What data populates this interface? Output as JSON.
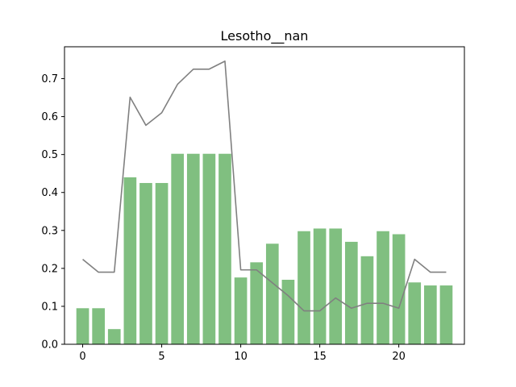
{
  "chart_data": {
    "type": "bar",
    "title": "Lesotho__nan",
    "xlabel": "",
    "ylabel": "",
    "x": [
      0,
      1,
      2,
      3,
      4,
      5,
      6,
      7,
      8,
      9,
      10,
      11,
      12,
      13,
      14,
      15,
      16,
      17,
      18,
      19,
      20,
      21,
      22,
      23
    ],
    "xlim": [
      -1.15,
      24.15
    ],
    "ylim": [
      0,
      0.784
    ],
    "xticks": [
      0,
      5,
      10,
      15,
      20
    ],
    "yticks": [
      0.0,
      0.1,
      0.2,
      0.3,
      0.4,
      0.5,
      0.6,
      0.7
    ],
    "ytick_labels": [
      "0.0",
      "0.1",
      "0.2",
      "0.3",
      "0.4",
      "0.5",
      "0.6",
      "0.7"
    ],
    "grid": false,
    "legend": "none",
    "series": [
      {
        "kind": "bar",
        "color": "#80bf80",
        "values": [
          0.095,
          0.095,
          0.04,
          0.44,
          0.425,
          0.425,
          0.502,
          0.502,
          0.502,
          0.502,
          0.176,
          0.216,
          0.265,
          0.17,
          0.298,
          0.305,
          0.305,
          0.27,
          0.232,
          0.298,
          0.29,
          0.163,
          0.155,
          0.155
        ]
      },
      {
        "kind": "line",
        "color": "#808080",
        "values": [
          0.224,
          0.19,
          0.19,
          0.651,
          0.577,
          0.61,
          0.685,
          0.725,
          0.725,
          0.746,
          0.196,
          0.196,
          0.162,
          0.128,
          0.088,
          0.088,
          0.122,
          0.095,
          0.108,
          0.108,
          0.095,
          0.224,
          0.19,
          0.19
        ]
      }
    ]
  }
}
